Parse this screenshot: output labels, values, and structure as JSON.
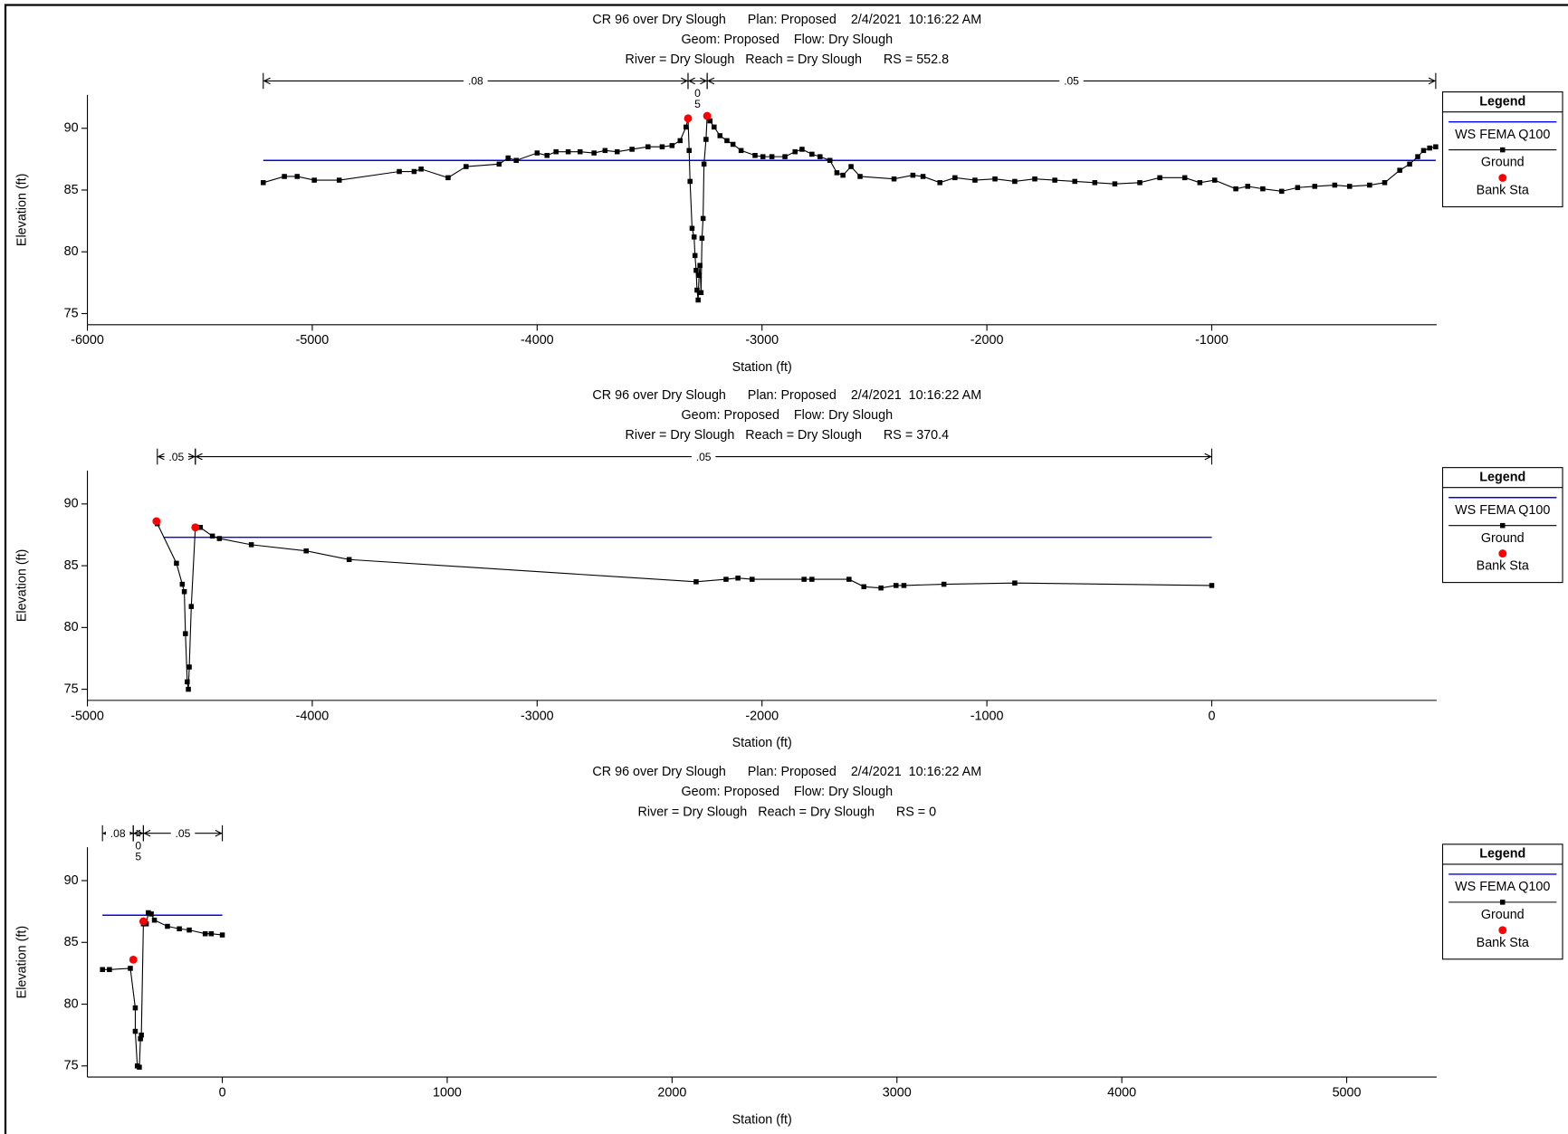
{
  "chart_data": [
    {
      "type": "line",
      "title": [
        "CR 96 over Dry Slough      Plan: Proposed    2/4/2021  10:16:22 AM",
        "Geom: Proposed    Flow: Dry Slough",
        "River = Dry Slough   Reach = Dry Slough      RS = 552.8"
      ],
      "xlabel": "Station (ft)",
      "ylabel": "Elevation (ft)",
      "xlim": [
        -6000,
        0
      ],
      "xticks": [
        -6000,
        -5000,
        -4000,
        -3000,
        -2000,
        -1000
      ],
      "ylim": [
        74.1,
        92.7
      ],
      "yticks": [
        75,
        80,
        85,
        90
      ],
      "legend_title": "Legend",
      "legend": "right",
      "n_values": [
        {
          "label": [
            ".08"
          ],
          "x": [
            -5218,
            -3329
          ]
        },
        {
          "label": [
            "0",
            "5"
          ],
          "x": [
            -3329,
            -3244
          ]
        },
        {
          "label": [
            ".05"
          ],
          "x": [
            -3244,
            -4
          ]
        }
      ],
      "series": [
        {
          "name": "WS FEMA Q100",
          "color": "#0000ff",
          "style": "line",
          "x": [
            -5218,
            -4
          ],
          "values": [
            87.4,
            87.4
          ]
        },
        {
          "name": "Ground",
          "color": "#000000",
          "style": "line-marker",
          "x": [
            -5218,
            -5124,
            -5067,
            -4991,
            -4880,
            -4613,
            -4547,
            -4516,
            -4396,
            -4316,
            -4169,
            -4129,
            -4093,
            -4000,
            -3956,
            -3916,
            -3862,
            -3809,
            -3747,
            -3698,
            -3644,
            -3578,
            -3507,
            -3444,
            -3400,
            -3364,
            -3338,
            -3329,
            -3324,
            -3320,
            -3311,
            -3302,
            -3298,
            -3293,
            -3289,
            -3284,
            -3280,
            -3276,
            -3271,
            -3267,
            -3262,
            -3258,
            -3249,
            -3244,
            -3231,
            -3213,
            -3187,
            -3156,
            -3129,
            -3093,
            -3031,
            -2996,
            -2956,
            -2898,
            -2853,
            -2822,
            -2778,
            -2742,
            -2698,
            -2667,
            -2640,
            -2604,
            -2564,
            -2413,
            -2329,
            -2284,
            -2209,
            -2142,
            -2053,
            -1964,
            -1876,
            -1787,
            -1698,
            -1609,
            -1520,
            -1431,
            -1320,
            -1231,
            -1120,
            -1053,
            -987,
            -893,
            -840,
            -773,
            -689,
            -618,
            -542,
            -453,
            -387,
            -298,
            -231,
            -164,
            -120,
            -84,
            -58,
            -31,
            -4
          ],
          "values": [
            85.6,
            86.1,
            86.1,
            85.8,
            85.8,
            86.5,
            86.5,
            86.7,
            86.0,
            86.9,
            87.1,
            87.6,
            87.4,
            88.0,
            87.8,
            88.1,
            88.1,
            88.1,
            88.0,
            88.2,
            88.1,
            88.3,
            88.5,
            88.5,
            88.6,
            89.0,
            90.1,
            90.8,
            88.2,
            85.7,
            81.9,
            81.2,
            79.7,
            78.5,
            76.9,
            76.1,
            78.1,
            78.9,
            76.7,
            81.1,
            82.7,
            87.1,
            89.1,
            91.0,
            90.6,
            90.1,
            89.4,
            89.0,
            88.7,
            88.2,
            87.8,
            87.7,
            87.7,
            87.7,
            88.1,
            88.3,
            87.9,
            87.7,
            87.4,
            86.4,
            86.2,
            86.9,
            86.1,
            85.9,
            86.2,
            86.1,
            85.6,
            86.0,
            85.8,
            85.9,
            85.7,
            85.9,
            85.8,
            85.7,
            85.6,
            85.5,
            85.6,
            86.0,
            86.0,
            85.6,
            85.8,
            85.1,
            85.3,
            85.1,
            84.9,
            85.2,
            85.3,
            85.4,
            85.3,
            85.4,
            85.6,
            86.6,
            87.1,
            87.7,
            88.2,
            88.4,
            88.5
          ]
        },
        {
          "name": "Bank Sta",
          "color": "#ff0000",
          "style": "marker",
          "x": [
            -3329,
            -3244
          ],
          "values": [
            90.8,
            91.0
          ]
        }
      ]
    },
    {
      "type": "line",
      "title": [
        "CR 96 over Dry Slough      Plan: Proposed    2/4/2021  10:16:22 AM",
        "Geom: Proposed    Flow: Dry Slough",
        "River = Dry Slough   Reach = Dry Slough      RS = 370.4"
      ],
      "xlabel": "Station (ft)",
      "ylabel": "Elevation (ft)",
      "xlim": [
        -5000,
        1000
      ],
      "xticks": [
        -5000,
        -4000,
        -3000,
        -2000,
        -1000,
        0
      ],
      "ylim": [
        74.1,
        92.7
      ],
      "yticks": [
        75,
        80,
        85,
        90
      ],
      "legend_title": "Legend",
      "legend": "right",
      "n_values": [
        {
          "label": [
            ".05"
          ],
          "x": [
            -4689,
            -4520
          ]
        },
        {
          "label": [
            ".05"
          ],
          "x": [
            -4520,
            0
          ]
        }
      ],
      "series": [
        {
          "name": "WS FEMA Q100",
          "color": "#0000ff",
          "style": "line",
          "x": [
            -4662,
            0
          ],
          "values": [
            87.3,
            87.3
          ]
        },
        {
          "name": "Ground",
          "color": "#000000",
          "style": "line-marker",
          "x": [
            -4689,
            -4604,
            -4578,
            -4569,
            -4564,
            -4556,
            -4551,
            -4547,
            -4538,
            -4520,
            -4498,
            -4444,
            -4413,
            -4271,
            -4027,
            -3836,
            -2293,
            -2160,
            -2107,
            -2044,
            -1813,
            -1778,
            -1613,
            -1547,
            -1471,
            -1404,
            -1369,
            -1191,
            -876,
            0
          ],
          "values": [
            88.4,
            85.2,
            83.5,
            82.9,
            79.5,
            75.6,
            75.0,
            76.8,
            81.7,
            88.1,
            88.1,
            87.4,
            87.2,
            86.7,
            86.2,
            85.5,
            83.7,
            83.9,
            84.0,
            83.9,
            83.9,
            83.9,
            83.9,
            83.3,
            83.2,
            83.4,
            83.4,
            83.5,
            83.6,
            83.4
          ]
        },
        {
          "name": "Bank Sta",
          "color": "#ff0000",
          "style": "marker",
          "x": [
            -4693,
            -4520
          ],
          "values": [
            88.6,
            88.1
          ]
        }
      ]
    },
    {
      "type": "line",
      "title": [
        "CR 96 over Dry Slough      Plan: Proposed    2/4/2021  10:16:22 AM",
        "Geom: Proposed    Flow: Dry Slough",
        "River = Dry Slough   Reach = Dry Slough      RS = 0"
      ],
      "xlabel": "Station (ft)",
      "ylabel": "Elevation (ft)",
      "xlim": [
        -600,
        5400
      ],
      "xticks": [
        0,
        1000,
        2000,
        3000,
        4000,
        5000
      ],
      "ylim": [
        74.1,
        92.7
      ],
      "yticks": [
        75,
        80,
        85,
        90
      ],
      "legend_title": "Legend",
      "legend": "right",
      "n_values": [
        {
          "label": [
            ".08"
          ],
          "x": [
            -533,
            -396
          ]
        },
        {
          "label": [
            "0",
            "5"
          ],
          "x": [
            -396,
            -351
          ]
        },
        {
          "label": [
            ".05"
          ],
          "x": [
            -351,
            0
          ]
        }
      ],
      "series": [
        {
          "name": "WS FEMA Q100",
          "color": "#0000ff",
          "style": "line",
          "x": [
            -533,
            0
          ],
          "values": [
            87.2,
            87.2
          ]
        },
        {
          "name": "Ground",
          "color": "#000000",
          "style": "line-marker",
          "x": [
            -533,
            -502,
            -409,
            -387,
            -387,
            -378,
            -369,
            -364,
            -360,
            -351,
            -338,
            -329,
            -316,
            -302,
            -244,
            -191,
            -147,
            -76,
            -49,
            0
          ],
          "values": [
            82.8,
            82.8,
            82.9,
            79.7,
            77.8,
            75.0,
            74.9,
            77.2,
            77.5,
            86.5,
            86.5,
            87.4,
            87.3,
            86.8,
            86.3,
            86.1,
            86.0,
            85.7,
            85.7,
            85.6
          ]
        },
        {
          "name": "Bank Sta",
          "color": "#ff0000",
          "style": "marker",
          "x": [
            -396,
            -351
          ],
          "values": [
            83.6,
            86.7
          ]
        }
      ]
    }
  ]
}
